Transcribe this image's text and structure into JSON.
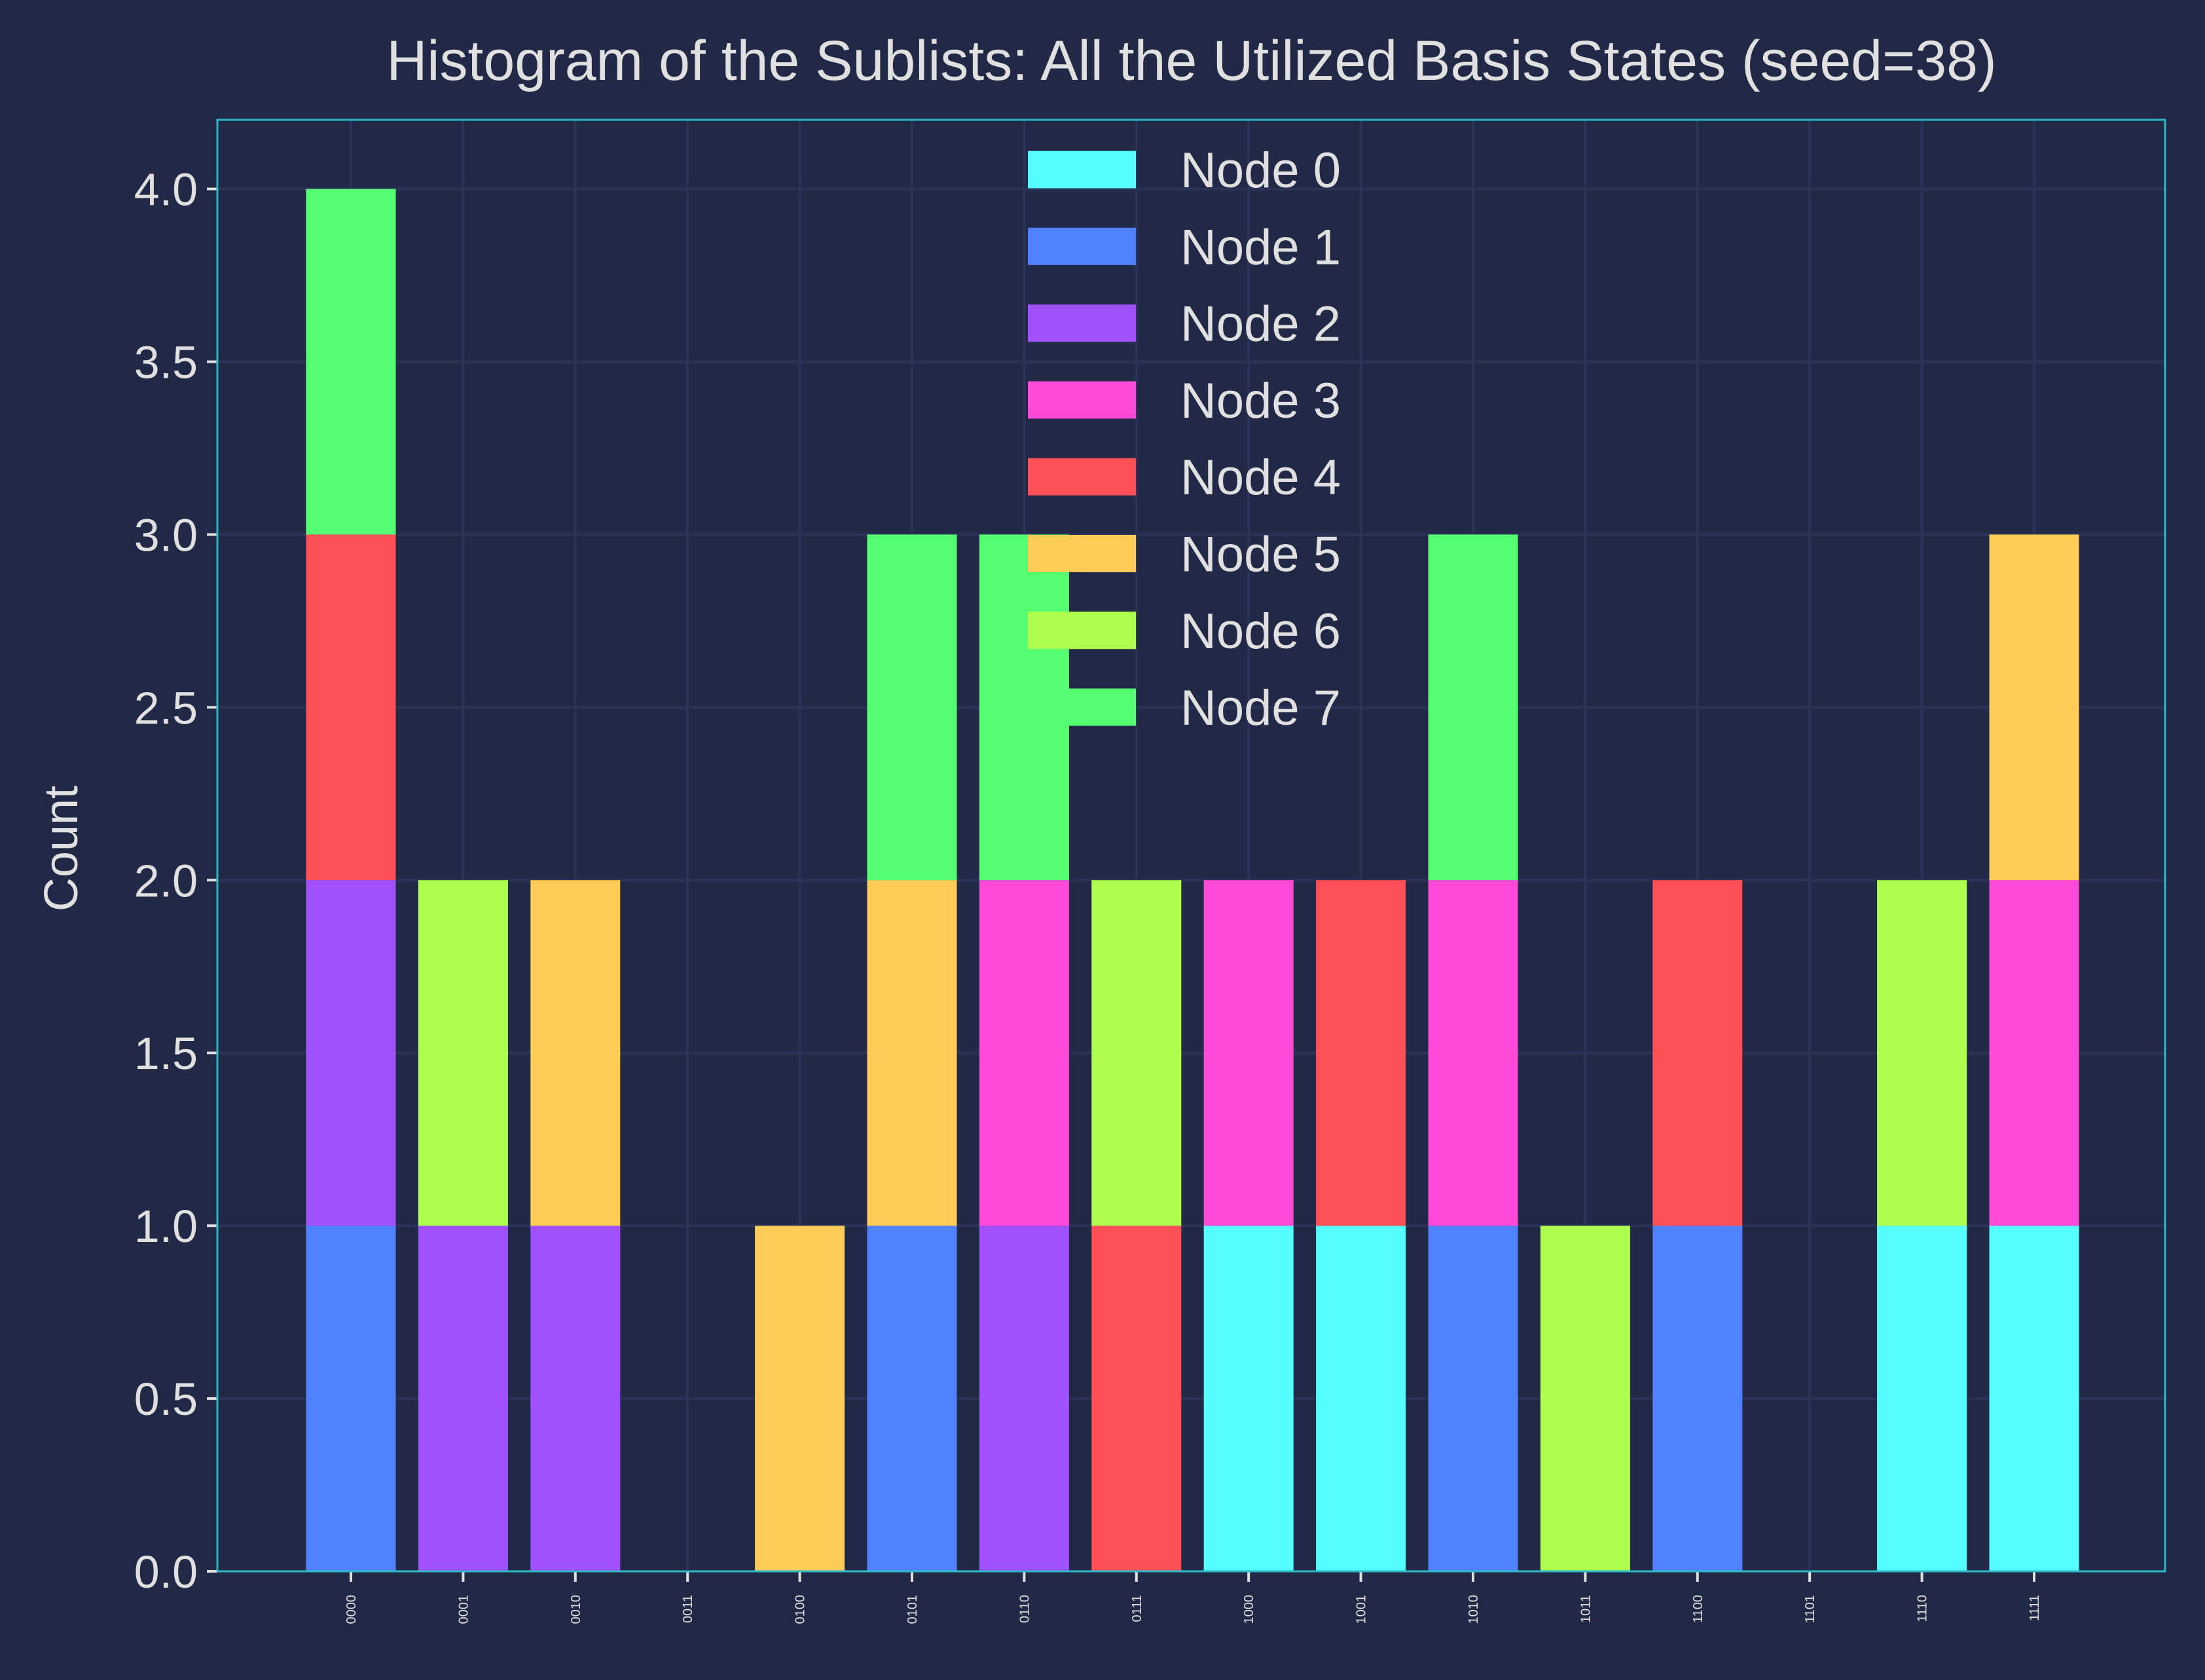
{
  "chart_data": {
    "type": "bar",
    "stacked": true,
    "title": "Histogram of the Sublists: All the Utilized Basis States (seed=38)",
    "xlabel": "",
    "ylabel": "Count",
    "ylim": [
      0,
      4.2
    ],
    "yticks": [
      "0.0",
      "0.5",
      "1.0",
      "1.5",
      "2.0",
      "2.5",
      "3.0",
      "3.5",
      "4.0"
    ],
    "grid": true,
    "legend_position": "top-center",
    "categories": [
      "0000",
      "0001",
      "0010",
      "0011",
      "0100",
      "0101",
      "0110",
      "0111",
      "1000",
      "1001",
      "1010",
      "1011",
      "1100",
      "1101",
      "1110",
      "1111"
    ],
    "series": [
      {
        "name": "Node 0",
        "color": "#55ffff",
        "values": [
          0,
          0,
          0,
          0,
          0,
          0,
          0,
          0,
          1,
          1,
          0,
          0,
          0,
          0,
          1,
          1
        ]
      },
      {
        "name": "Node 1",
        "color": "#5081ff",
        "values": [
          1,
          0,
          0,
          0,
          0,
          1,
          0,
          0,
          0,
          0,
          1,
          0,
          1,
          0,
          0,
          0
        ]
      },
      {
        "name": "Node 2",
        "color": "#a050ff",
        "values": [
          1,
          1,
          1,
          0,
          0,
          0,
          1,
          0,
          0,
          0,
          0,
          0,
          0,
          0,
          0,
          0
        ]
      },
      {
        "name": "Node 3",
        "color": "#ff4ad9",
        "values": [
          0,
          0,
          0,
          0,
          0,
          0,
          1,
          0,
          1,
          0,
          1,
          0,
          0,
          0,
          0,
          1
        ]
      },
      {
        "name": "Node 4",
        "color": "#ff5058",
        "values": [
          1,
          0,
          0,
          0,
          0,
          0,
          0,
          1,
          0,
          1,
          0,
          0,
          1,
          0,
          0,
          0
        ]
      },
      {
        "name": "Node 5",
        "color": "#ffcc55",
        "values": [
          0,
          0,
          1,
          0,
          1,
          1,
          0,
          0,
          0,
          0,
          0,
          0,
          0,
          0,
          0,
          1
        ]
      },
      {
        "name": "Node 6",
        "color": "#aeff4e",
        "values": [
          0,
          1,
          0,
          0,
          0,
          0,
          0,
          1,
          0,
          0,
          0,
          1,
          0,
          0,
          1,
          0
        ]
      },
      {
        "name": "Node 7",
        "color": "#55ff72",
        "values": [
          1,
          0,
          0,
          0,
          0,
          1,
          1,
          0,
          0,
          0,
          1,
          0,
          0,
          0,
          0,
          0
        ]
      }
    ]
  }
}
